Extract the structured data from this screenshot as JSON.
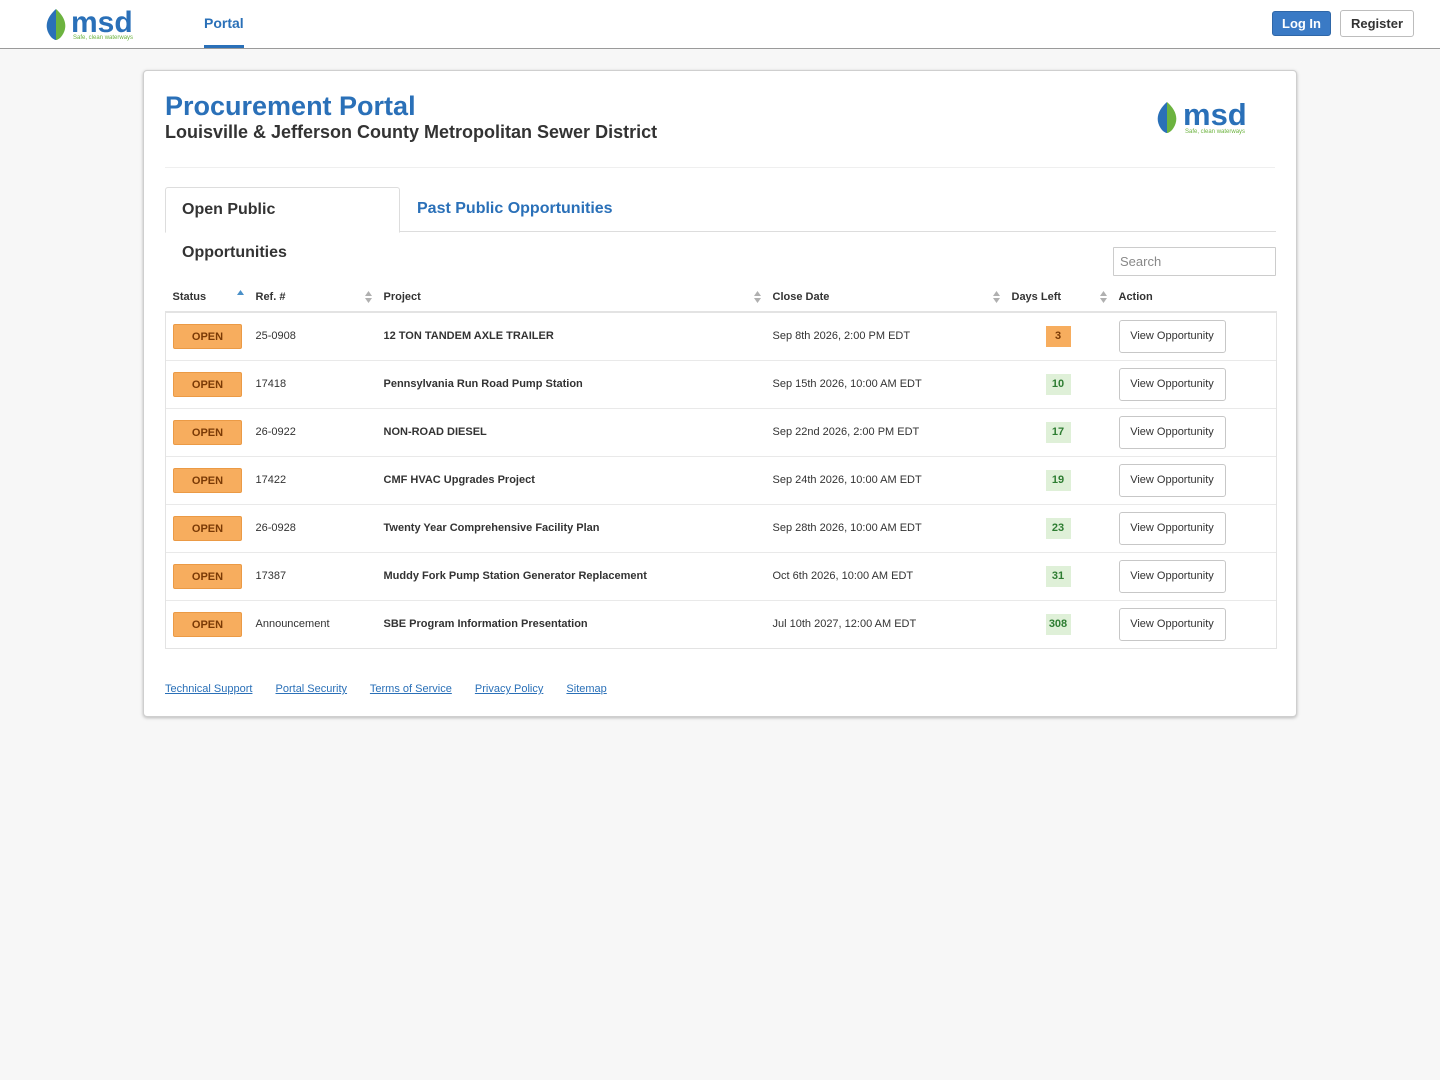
{
  "nav": {
    "logo_name": "msd",
    "portal_label": "Portal",
    "login_label": "Log In",
    "register_label": "Register"
  },
  "header": {
    "title": "Procurement Portal",
    "subtitle": "Louisville & Jefferson County Metropolitan Sewer District"
  },
  "tabs": {
    "open_label": "Open Public Opportunities",
    "past_label": "Past Public Opportunities"
  },
  "search": {
    "placeholder": "Search"
  },
  "table": {
    "columns": [
      "Status",
      "Ref. #",
      "Project",
      "Close Date",
      "Days Left",
      "Action"
    ],
    "rows": [
      {
        "status": "OPEN",
        "ref": "25-0908",
        "project": "12 TON TANDEM AXLE TRAILER",
        "close": "Sep 8th 2026, 2:00 PM EDT",
        "days": "3",
        "action": "View Opportunity"
      },
      {
        "status": "OPEN",
        "ref": "17418",
        "project": "Pennsylvania Run Road Pump Station",
        "close": "Sep 15th 2026, 10:00 AM EDT",
        "days": "10",
        "action": "View Opportunity"
      },
      {
        "status": "OPEN",
        "ref": "26-0922",
        "project": "NON-ROAD DIESEL",
        "close": "Sep 22nd 2026, 2:00 PM EDT",
        "days": "17",
        "action": "View Opportunity"
      },
      {
        "status": "OPEN",
        "ref": "17422",
        "project": "CMF HVAC Upgrades Project",
        "close": "Sep 24th 2026, 10:00 AM EDT",
        "days": "19",
        "action": "View Opportunity"
      },
      {
        "status": "OPEN",
        "ref": "26-0928",
        "project": "Twenty Year Comprehensive Facility Plan",
        "close": "Sep 28th 2026, 10:00 AM EDT",
        "days": "23",
        "action": "View Opportunity"
      },
      {
        "status": "OPEN",
        "ref": "17387",
        "project": "Muddy Fork Pump Station Generator Replacement",
        "close": "Oct 6th 2026, 10:00 AM EDT",
        "days": "31",
        "action": "View Opportunity"
      },
      {
        "status": "OPEN",
        "ref": "Announcement",
        "project": "SBE Program Information Presentation",
        "close": "Jul 10th 2027, 12:00 AM EDT",
        "days": "308",
        "action": "View Opportunity"
      }
    ]
  },
  "footer": {
    "links": [
      "Technical Support",
      "Portal Security",
      "Terms of Service",
      "Privacy Policy",
      "Sitemap"
    ]
  },
  "colors": {
    "brand_blue": "#2a70b8",
    "status_orange": "#f7ad5e",
    "days_green_bg": "#dff0d8",
    "logo_green": "#6cb33f"
  }
}
